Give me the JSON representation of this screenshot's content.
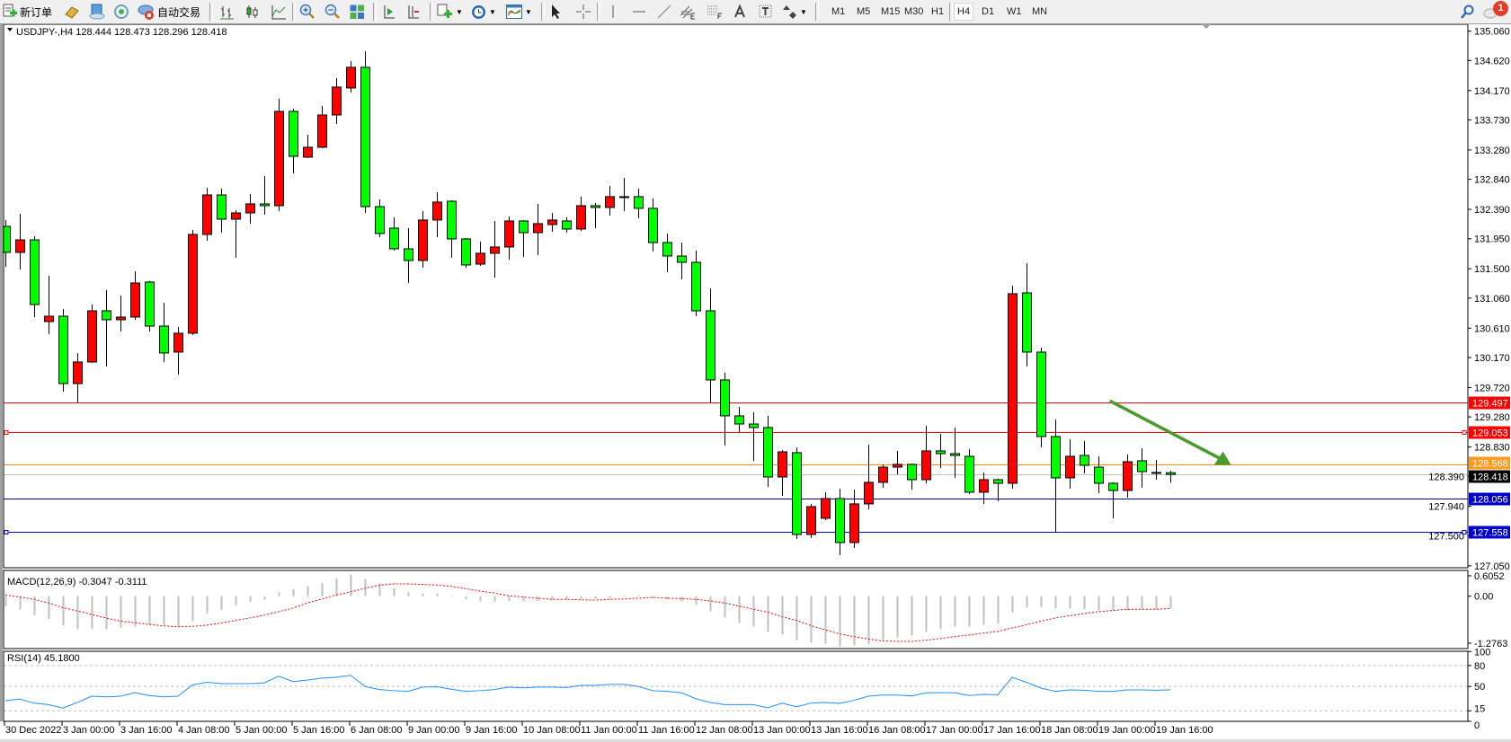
{
  "toolbar": {
    "new_order_label": "新订单",
    "autotrading_label": "自动交易",
    "timeframes": [
      "M1",
      "M5",
      "M15",
      "M30",
      "H1",
      "H4",
      "D1",
      "W1",
      "MN"
    ],
    "active_timeframe": "H4",
    "notification_count": "1"
  },
  "chart": {
    "title": "USDJPY-,H4  128.444 128.473 128.296 128.418",
    "symbol": "USDJPY-",
    "timeframe": "H4"
  },
  "chart_data": {
    "type": "candlestick",
    "colors": {
      "up": "#ff0000",
      "down": "#00ff00",
      "wick": "#000000"
    },
    "ylim": [
      127.05,
      135.06
    ],
    "price_ticks": [
      "135.060",
      "134.620",
      "134.170",
      "133.730",
      "133.280",
      "132.840",
      "132.390",
      "131.950",
      "131.500",
      "131.060",
      "130.610",
      "130.170",
      "129.720",
      "129.280",
      "128.830",
      "128.390",
      "127.940",
      "127.500",
      "127.050"
    ],
    "time_labels": [
      "30 Dec 2022",
      "3 Jan 00:00",
      "3 Jan 16:00",
      "4 Jan 08:00",
      "5 Jan 00:00",
      "5 Jan 16:00",
      "6 Jan 08:00",
      "9 Jan 00:00",
      "9 Jan 16:00",
      "10 Jan 08:00",
      "11 Jan 00:00",
      "11 Jan 16:00",
      "12 Jan 08:00",
      "13 Jan 00:00",
      "13 Jan 16:00",
      "16 Jan 08:00",
      "17 Jan 00:00",
      "17 Jan 16:00",
      "18 Jan 08:00",
      "19 Jan 00:00",
      "19 Jan 16:00"
    ],
    "ohlc": [
      [
        132.135,
        132.23,
        131.53,
        131.745
      ],
      [
        131.745,
        132.324,
        131.489,
        131.933
      ],
      [
        131.933,
        131.987,
        130.776,
        130.964
      ],
      [
        130.709,
        131.395,
        130.52,
        130.789
      ],
      [
        130.789,
        130.897,
        129.659,
        129.78
      ],
      [
        129.78,
        130.238,
        129.497,
        130.103
      ],
      [
        130.103,
        130.964,
        130.09,
        130.87
      ],
      [
        130.87,
        131.18,
        130.036,
        130.736
      ],
      [
        130.736,
        131.099,
        130.561,
        130.776
      ],
      [
        130.776,
        131.462,
        130.736,
        131.287
      ],
      [
        131.301,
        131.315,
        130.561,
        130.641
      ],
      [
        130.641,
        130.991,
        130.103,
        130.238
      ],
      [
        130.251,
        130.628,
        129.915,
        130.534
      ],
      [
        130.534,
        132.082,
        130.507,
        132.014
      ],
      [
        132.014,
        132.714,
        131.92,
        132.606
      ],
      [
        132.606,
        132.701,
        132.041,
        132.243
      ],
      [
        132.243,
        132.378,
        131.664,
        132.337
      ],
      [
        132.337,
        132.62,
        132.176,
        132.472
      ],
      [
        132.472,
        132.889,
        132.31,
        132.445
      ],
      [
        132.445,
        134.047,
        132.364,
        133.858
      ],
      [
        133.858,
        133.899,
        132.929,
        133.185
      ],
      [
        133.172,
        133.508,
        133.158,
        133.32
      ],
      [
        133.32,
        133.939,
        133.306,
        133.804
      ],
      [
        133.804,
        134.356,
        133.67,
        134.222
      ],
      [
        134.208,
        134.612,
        134.141,
        134.518
      ],
      [
        134.518,
        134.76,
        132.337,
        132.431
      ],
      [
        132.431,
        132.539,
        131.974,
        132.028
      ],
      [
        132.108,
        132.27,
        131.772,
        131.799
      ],
      [
        131.799,
        132.108,
        131.287,
        131.624
      ],
      [
        131.624,
        132.364,
        131.516,
        132.23
      ],
      [
        132.23,
        132.647,
        131.974,
        132.499
      ],
      [
        132.512,
        132.526,
        131.664,
        131.947
      ],
      [
        131.947,
        131.96,
        131.516,
        131.557
      ],
      [
        131.57,
        131.907,
        131.543,
        131.732
      ],
      [
        131.732,
        132.216,
        131.368,
        131.826
      ],
      [
        131.826,
        132.283,
        131.637,
        132.216
      ],
      [
        132.216,
        132.23,
        131.678,
        132.041
      ],
      [
        132.041,
        132.472,
        131.705,
        132.176
      ],
      [
        132.162,
        132.337,
        132.055,
        132.23
      ],
      [
        132.216,
        132.27,
        132.041,
        132.095
      ],
      [
        132.095,
        132.58,
        132.068,
        132.445
      ],
      [
        132.445,
        132.485,
        132.108,
        132.418
      ],
      [
        132.418,
        132.741,
        132.297,
        132.58
      ],
      [
        132.58,
        132.862,
        132.364,
        132.575
      ],
      [
        132.58,
        132.701,
        132.257,
        132.405
      ],
      [
        132.405,
        132.553,
        131.759,
        131.893
      ],
      [
        131.893,
        132.028,
        131.449,
        131.691
      ],
      [
        131.691,
        131.893,
        131.341,
        131.597
      ],
      [
        131.597,
        131.772,
        130.789,
        130.87
      ],
      [
        130.87,
        131.207,
        129.497,
        129.834
      ],
      [
        129.834,
        129.942,
        128.851,
        129.296
      ],
      [
        129.296,
        129.43,
        129.053,
        129.174
      ],
      [
        129.174,
        129.349,
        128.623,
        129.121
      ],
      [
        129.121,
        129.296,
        128.232,
        128.38
      ],
      [
        128.38,
        128.784,
        128.098,
        128.757
      ],
      [
        128.744,
        128.824,
        127.452,
        127.519
      ],
      [
        127.519,
        127.977,
        127.465,
        127.936
      ],
      [
        127.761,
        128.152,
        127.734,
        128.057
      ],
      [
        128.057,
        128.205,
        127.209,
        127.398
      ],
      [
        127.398,
        128.192,
        127.317,
        127.977
      ],
      [
        127.977,
        128.865,
        127.896,
        128.3
      ],
      [
        128.3,
        128.569,
        128.219,
        128.528
      ],
      [
        128.528,
        128.771,
        128.421,
        128.569
      ],
      [
        128.569,
        128.582,
        128.192,
        128.34
      ],
      [
        128.34,
        129.147,
        128.286,
        128.771
      ],
      [
        128.771,
        129.026,
        128.515,
        128.73
      ],
      [
        128.73,
        129.121,
        128.367,
        128.703
      ],
      [
        128.69,
        128.798,
        128.125,
        128.152
      ],
      [
        128.152,
        128.448,
        127.977,
        128.34
      ],
      [
        128.34,
        128.353,
        128.017,
        128.286
      ],
      [
        128.286,
        131.247,
        128.205,
        131.126
      ],
      [
        131.139,
        131.584,
        130.036,
        130.251
      ],
      [
        130.251,
        130.318,
        128.824,
        128.986
      ],
      [
        128.986,
        129.242,
        127.559,
        128.367
      ],
      [
        128.367,
        128.946,
        128.205,
        128.69
      ],
      [
        128.703,
        128.919,
        128.434,
        128.555
      ],
      [
        128.528,
        128.69,
        128.138,
        128.286
      ],
      [
        128.286,
        128.3,
        127.761,
        128.178
      ],
      [
        128.178,
        128.717,
        128.071,
        128.609
      ],
      [
        128.623,
        128.811,
        128.219,
        128.461
      ],
      [
        128.448,
        128.636,
        128.34,
        128.444
      ],
      [
        128.444,
        128.473,
        128.296,
        128.418
      ]
    ],
    "hlines": [
      {
        "price": 129.497,
        "label": "129.497",
        "color": "#ff0000",
        "label_bg": "#ff0000",
        "label_fg": "#ffffff",
        "markers": false
      },
      {
        "price": 129.053,
        "label": "129.053",
        "color": "#ff0000",
        "label_bg": "#ff0000",
        "label_fg": "#ffffff",
        "markers": true
      },
      {
        "price": 128.568,
        "label": "128.568",
        "color": "#ff8c00",
        "label_bg": "#ff9922",
        "label_fg": "#ffffff",
        "markers": false
      },
      {
        "price": 128.418,
        "label": "128.418",
        "color": "#c0c0c0",
        "label_bg": "#000000",
        "label_fg": "#ffffff",
        "markers": false
      },
      {
        "price": 128.056,
        "label": "128.056",
        "color": "#000090",
        "label_bg": "#0000cc",
        "label_fg": "#ffffff",
        "markers": false
      },
      {
        "price": 127.558,
        "label": "127.558",
        "color": "#0000cc",
        "label_bg": "#0000cc",
        "label_fg": "#ffffff",
        "markers": true
      }
    ],
    "drawn_arrow": {
      "color": "#4b9a2c",
      "start_bar": 76.8,
      "start_price": 129.52,
      "end_bar": 85.1,
      "end_price": 128.56
    }
  },
  "macd": {
    "label": "MACD(12,26,9) -0.3047 -0.3111",
    "ticks": [
      "0.6052",
      "0.00",
      "-1.2763"
    ],
    "range": [
      -1.2763,
      0.6052
    ],
    "histogram_color": "#c0c0c0",
    "signal_color": "#ff0000",
    "histogram": [
      -0.25,
      -0.33,
      -0.48,
      -0.58,
      -0.74,
      -0.83,
      -0.83,
      -0.83,
      -0.8,
      -0.77,
      -0.74,
      -0.74,
      -0.78,
      -0.63,
      -0.44,
      -0.34,
      -0.23,
      -0.14,
      -0.08,
      0.1,
      0.18,
      0.25,
      0.33,
      0.45,
      0.55,
      0.43,
      0.32,
      0.2,
      0.1,
      0.07,
      0.07,
      0.01,
      -0.08,
      -0.13,
      -0.14,
      -0.12,
      -0.12,
      -0.12,
      -0.1,
      -0.09,
      -0.07,
      -0.07,
      -0.06,
      0.02,
      0.02,
      -0.04,
      -0.08,
      -0.13,
      -0.22,
      -0.38,
      -0.54,
      -0.67,
      -0.77,
      -0.9,
      -0.97,
      -1.11,
      -1.17,
      -1.2,
      -1.27,
      -1.24,
      -1.2,
      -1.11,
      -1.04,
      -0.99,
      -0.9,
      -0.83,
      -0.77,
      -0.77,
      -0.72,
      -0.7,
      -0.42,
      -0.29,
      -0.27,
      -0.31,
      -0.31,
      -0.33,
      -0.36,
      -0.36,
      -0.36,
      -0.33,
      -0.33,
      -0.3047
    ],
    "signal": [
      0.03,
      -0.02,
      -0.08,
      -0.17,
      -0.29,
      -0.37,
      -0.46,
      -0.55,
      -0.63,
      -0.67,
      -0.71,
      -0.75,
      -0.77,
      -0.76,
      -0.73,
      -0.68,
      -0.61,
      -0.55,
      -0.48,
      -0.39,
      -0.3,
      -0.17,
      -0.07,
      0.03,
      0.11,
      0.2,
      0.28,
      0.31,
      0.31,
      0.3,
      0.28,
      0.25,
      0.19,
      0.13,
      0.08,
      0.01,
      -0.02,
      -0.05,
      -0.08,
      -0.08,
      -0.09,
      -0.1,
      -0.08,
      -0.07,
      -0.05,
      -0.03,
      -0.05,
      -0.06,
      -0.08,
      -0.12,
      -0.17,
      -0.25,
      -0.33,
      -0.4,
      -0.52,
      -0.61,
      -0.74,
      -0.85,
      -0.95,
      -1.02,
      -1.08,
      -1.13,
      -1.14,
      -1.14,
      -1.11,
      -1.07,
      -1.02,
      -0.98,
      -0.93,
      -0.89,
      -0.8,
      -0.72,
      -0.63,
      -0.55,
      -0.49,
      -0.44,
      -0.39,
      -0.36,
      -0.33,
      -0.33,
      -0.33,
      -0.3111
    ]
  },
  "rsi": {
    "label": "RSI(14) 45.1800",
    "ticks": [
      "100",
      "80",
      "50",
      "15",
      "0"
    ],
    "levels": [
      80,
      50,
      15
    ],
    "range": [
      0,
      100
    ],
    "color": "#1e90ff",
    "values": [
      29.6,
      32,
      26,
      24,
      19,
      27,
      36,
      35,
      36,
      41,
      37,
      35,
      36,
      52,
      56,
      54,
      54,
      54,
      55,
      64.6,
      57,
      59,
      62,
      63,
      66,
      50,
      45.5,
      44,
      43,
      49,
      49.5,
      46,
      43,
      44,
      45.5,
      49,
      48,
      49,
      49,
      48.5,
      51.5,
      51.5,
      53,
      53,
      50,
      44,
      43,
      41,
      32.5,
      27,
      24,
      24,
      24,
      19.5,
      26,
      21,
      26,
      27,
      25.7,
      30,
      36,
      37.7,
      37.7,
      36.4,
      40.8,
      41,
      41,
      37,
      38.6,
      38,
      63,
      56,
      47.6,
      43,
      45,
      44.5,
      43,
      43,
      45,
      45,
      44.5,
      45.18
    ]
  }
}
